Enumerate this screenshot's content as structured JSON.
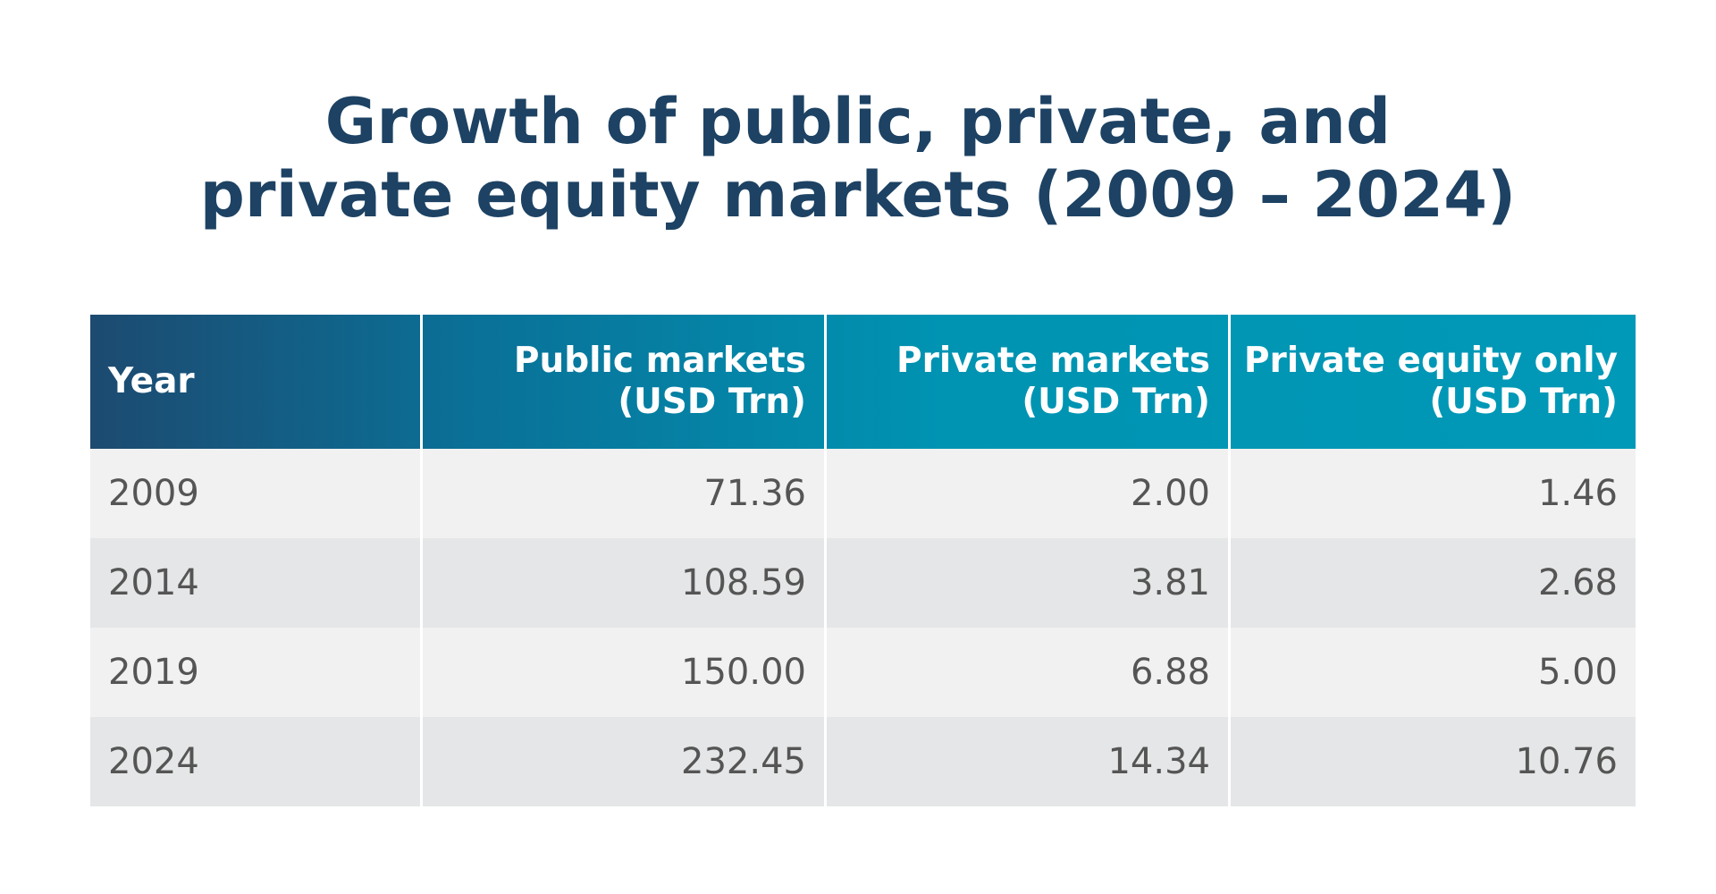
{
  "chart_data": {
    "type": "table",
    "title_lines": [
      "Growth of public, private, and",
      "private equity markets (2009 – 2024)"
    ],
    "columns": [
      {
        "lines": [
          "Year"
        ]
      },
      {
        "lines": [
          "Public markets",
          "(USD Trn)"
        ]
      },
      {
        "lines": [
          "Private markets",
          "(USD Trn)"
        ]
      },
      {
        "lines": [
          "Private equity only",
          "(USD Trn)"
        ]
      }
    ],
    "rows": [
      [
        "2009",
        "71.36",
        "2.00",
        "1.46"
      ],
      [
        "2014",
        "108.59",
        "3.81",
        "2.68"
      ],
      [
        "2019",
        "150.00",
        "6.88",
        "5.00"
      ],
      [
        "2024",
        "232.45",
        "14.34",
        "10.76"
      ]
    ],
    "colors": {
      "title": "#1d4263",
      "header_gradient_start": "#1d4a70",
      "header_gradient_end": "#0099b7",
      "row_light": "#f0f1f0",
      "row_dark": "#e5e6e7",
      "cell_text": "#555555"
    }
  }
}
